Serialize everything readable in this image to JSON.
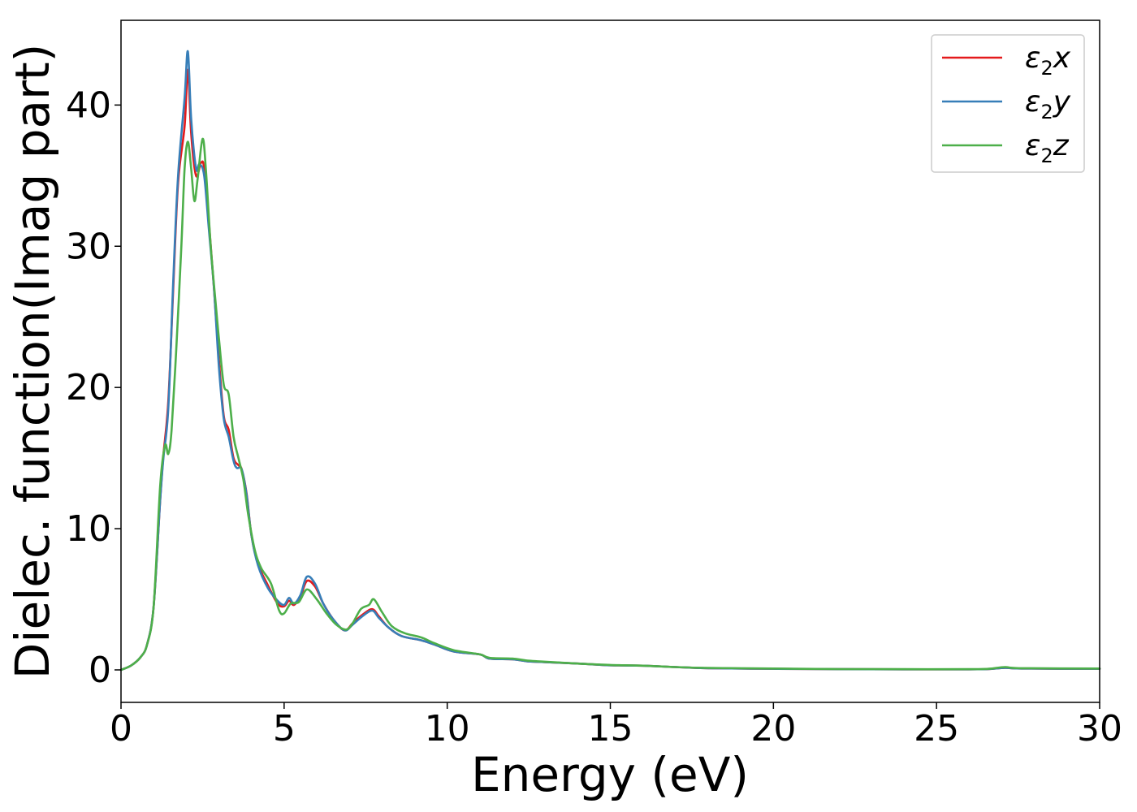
{
  "chart_data": {
    "type": "line",
    "title": "",
    "xlabel": "Energy (eV)",
    "ylabel": "Dielec. function(Imag part)",
    "xlim": [
      0,
      30
    ],
    "ylim": [
      -2.3,
      46
    ],
    "xticks": [
      0,
      5,
      10,
      15,
      20,
      25,
      30
    ],
    "yticks": [
      0,
      10,
      20,
      30,
      40
    ],
    "grid": false,
    "legend_position": "top-right",
    "series": [
      {
        "name": "ε2x",
        "legend_base": "ε",
        "legend_sub": "2",
        "legend_tail": "x",
        "color": "#e41a1c",
        "points": [
          [
            0,
            0
          ],
          [
            0.3,
            0.3
          ],
          [
            0.6,
            0.9
          ],
          [
            0.8,
            1.8
          ],
          [
            1.0,
            4.5
          ],
          [
            1.2,
            12
          ],
          [
            1.3,
            15.2
          ],
          [
            1.45,
            19
          ],
          [
            1.6,
            27
          ],
          [
            1.75,
            34.5
          ],
          [
            1.95,
            38.5
          ],
          [
            2.05,
            42.5
          ],
          [
            2.15,
            38
          ],
          [
            2.3,
            35
          ],
          [
            2.45,
            35.9
          ],
          [
            2.55,
            35.5
          ],
          [
            2.7,
            31.5
          ],
          [
            2.85,
            27
          ],
          [
            3.0,
            22
          ],
          [
            3.15,
            18
          ],
          [
            3.3,
            17
          ],
          [
            3.45,
            15
          ],
          [
            3.6,
            14.5
          ],
          [
            3.7,
            14.2
          ],
          [
            3.85,
            12.5
          ],
          [
            4.0,
            9.5
          ],
          [
            4.2,
            7.5
          ],
          [
            4.5,
            6
          ],
          [
            4.8,
            4.7
          ],
          [
            5.0,
            4.5
          ],
          [
            5.15,
            4.9
          ],
          [
            5.3,
            4.6
          ],
          [
            5.5,
            5.2
          ],
          [
            5.7,
            6.3
          ],
          [
            5.95,
            5.9
          ],
          [
            6.2,
            4.7
          ],
          [
            6.5,
            3.6
          ],
          [
            6.85,
            2.8
          ],
          [
            7.1,
            3.3
          ],
          [
            7.4,
            3.9
          ],
          [
            7.7,
            4.3
          ],
          [
            7.9,
            3.8
          ],
          [
            8.2,
            3
          ],
          [
            8.6,
            2.4
          ],
          [
            9.2,
            2.1
          ],
          [
            9.6,
            1.8
          ],
          [
            10.2,
            1.3
          ],
          [
            11,
            1.1
          ],
          [
            11.3,
            0.8
          ],
          [
            12,
            0.75
          ],
          [
            12.5,
            0.6
          ],
          [
            13,
            0.55
          ],
          [
            14,
            0.45
          ],
          [
            15,
            0.33
          ],
          [
            16,
            0.3
          ],
          [
            17,
            0.2
          ],
          [
            18,
            0.12
          ],
          [
            20,
            0.08
          ],
          [
            22,
            0.05
          ],
          [
            24,
            0.04
          ],
          [
            26,
            0.04
          ],
          [
            26.6,
            0.06
          ],
          [
            27.1,
            0.15
          ],
          [
            27.6,
            0.1
          ],
          [
            30,
            0.08
          ]
        ]
      },
      {
        "name": "ε2y",
        "legend_base": "ε",
        "legend_sub": "2",
        "legend_tail": "y",
        "color": "#377eb8",
        "points": [
          [
            0,
            0
          ],
          [
            0.3,
            0.3
          ],
          [
            0.6,
            0.9
          ],
          [
            0.8,
            1.8
          ],
          [
            1.0,
            4.5
          ],
          [
            1.2,
            12
          ],
          [
            1.3,
            15
          ],
          [
            1.45,
            18.5
          ],
          [
            1.6,
            27.5
          ],
          [
            1.75,
            35
          ],
          [
            1.95,
            40.5
          ],
          [
            2.05,
            43.8
          ],
          [
            2.15,
            39
          ],
          [
            2.3,
            35.5
          ],
          [
            2.4,
            35.8
          ],
          [
            2.55,
            35
          ],
          [
            2.7,
            31
          ],
          [
            2.85,
            27
          ],
          [
            3.0,
            21.5
          ],
          [
            3.15,
            17.8
          ],
          [
            3.3,
            16.5
          ],
          [
            3.45,
            14.8
          ],
          [
            3.55,
            14.3
          ],
          [
            3.7,
            14.2
          ],
          [
            3.85,
            12.4
          ],
          [
            4.0,
            9.5
          ],
          [
            4.2,
            7.4
          ],
          [
            4.5,
            5.8
          ],
          [
            4.8,
            4.9
          ],
          [
            5.0,
            4.6
          ],
          [
            5.15,
            5.1
          ],
          [
            5.3,
            4.7
          ],
          [
            5.5,
            5.3
          ],
          [
            5.7,
            6.6
          ],
          [
            5.95,
            6.1
          ],
          [
            6.2,
            4.7
          ],
          [
            6.5,
            3.6
          ],
          [
            6.85,
            2.8
          ],
          [
            7.1,
            3.2
          ],
          [
            7.4,
            3.8
          ],
          [
            7.7,
            4.2
          ],
          [
            7.9,
            3.7
          ],
          [
            8.2,
            3
          ],
          [
            8.6,
            2.4
          ],
          [
            9.2,
            2.1
          ],
          [
            9.6,
            1.8
          ],
          [
            10.2,
            1.3
          ],
          [
            11,
            1.1
          ],
          [
            11.3,
            0.8
          ],
          [
            12,
            0.75
          ],
          [
            12.5,
            0.6
          ],
          [
            13,
            0.55
          ],
          [
            14,
            0.45
          ],
          [
            15,
            0.33
          ],
          [
            16,
            0.3
          ],
          [
            17,
            0.2
          ],
          [
            18,
            0.12
          ],
          [
            20,
            0.08
          ],
          [
            22,
            0.05
          ],
          [
            24,
            0.04
          ],
          [
            26,
            0.04
          ],
          [
            26.6,
            0.06
          ],
          [
            27.1,
            0.15
          ],
          [
            27.6,
            0.1
          ],
          [
            30,
            0.08
          ]
        ]
      },
      {
        "name": "ε2z",
        "legend_base": "ε",
        "legend_sub": "2",
        "legend_tail": "z",
        "color": "#4daf4a",
        "points": [
          [
            0,
            0
          ],
          [
            0.3,
            0.3
          ],
          [
            0.6,
            0.9
          ],
          [
            0.8,
            1.8
          ],
          [
            1.0,
            4.5
          ],
          [
            1.2,
            13
          ],
          [
            1.35,
            15.9
          ],
          [
            1.45,
            15.3
          ],
          [
            1.55,
            17
          ],
          [
            1.7,
            23
          ],
          [
            1.85,
            30
          ],
          [
            1.95,
            35.5
          ],
          [
            2.05,
            37.4
          ],
          [
            2.15,
            35.5
          ],
          [
            2.25,
            33.2
          ],
          [
            2.35,
            34.8
          ],
          [
            2.5,
            37.6
          ],
          [
            2.6,
            35.5
          ],
          [
            2.75,
            30
          ],
          [
            2.9,
            26
          ],
          [
            3.0,
            23.5
          ],
          [
            3.15,
            20.2
          ],
          [
            3.3,
            19.5
          ],
          [
            3.45,
            16.5
          ],
          [
            3.6,
            15
          ],
          [
            3.75,
            13.5
          ],
          [
            3.9,
            11
          ],
          [
            4.1,
            8.5
          ],
          [
            4.3,
            7.2
          ],
          [
            4.6,
            6.1
          ],
          [
            4.85,
            4.2
          ],
          [
            5.0,
            4
          ],
          [
            5.2,
            4.7
          ],
          [
            5.45,
            4.8
          ],
          [
            5.7,
            5.7
          ],
          [
            6.0,
            5
          ],
          [
            6.3,
            4
          ],
          [
            6.6,
            3.2
          ],
          [
            6.9,
            2.85
          ],
          [
            7.1,
            3.3
          ],
          [
            7.35,
            4.3
          ],
          [
            7.6,
            4.6
          ],
          [
            7.75,
            5
          ],
          [
            8.0,
            4.1
          ],
          [
            8.3,
            3.1
          ],
          [
            8.7,
            2.6
          ],
          [
            9.2,
            2.3
          ],
          [
            9.6,
            1.9
          ],
          [
            10.2,
            1.4
          ],
          [
            11,
            1.1
          ],
          [
            11.3,
            0.85
          ],
          [
            12,
            0.8
          ],
          [
            12.5,
            0.65
          ],
          [
            13,
            0.58
          ],
          [
            14,
            0.45
          ],
          [
            15,
            0.35
          ],
          [
            16,
            0.3
          ],
          [
            17,
            0.2
          ],
          [
            18,
            0.14
          ],
          [
            20,
            0.1
          ],
          [
            22,
            0.06
          ],
          [
            24,
            0.05
          ],
          [
            26,
            0.05
          ],
          [
            26.6,
            0.08
          ],
          [
            27.1,
            0.2
          ],
          [
            27.6,
            0.12
          ],
          [
            30,
            0.1
          ]
        ]
      }
    ]
  }
}
